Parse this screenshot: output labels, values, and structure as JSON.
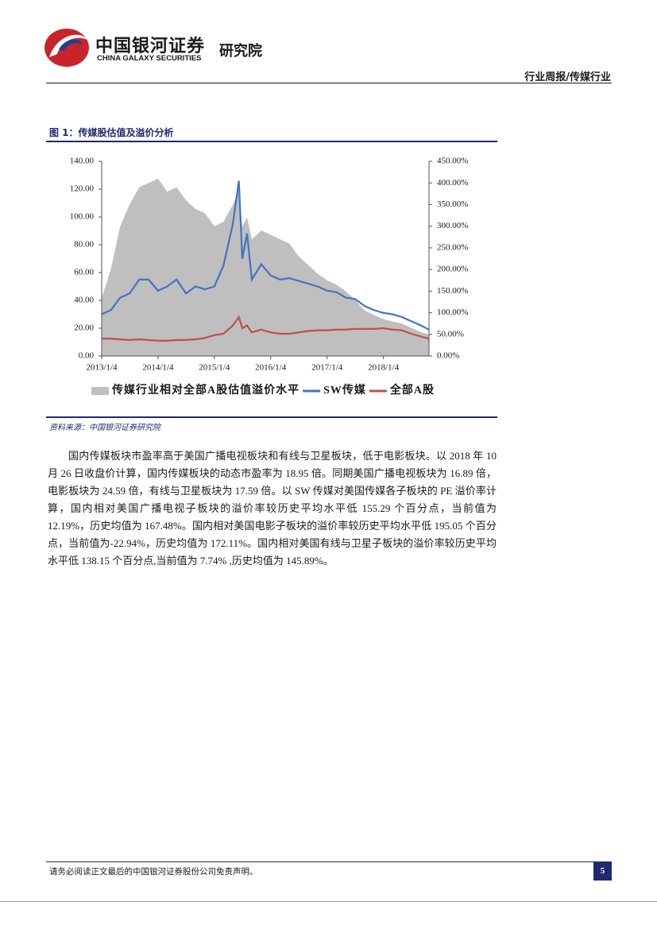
{
  "header": {
    "brand_cn": "中国银河证券",
    "brand_en": "CHINA GALAXY SECURITIES",
    "institute": "研究院",
    "section": "行业周报/传媒行业"
  },
  "figure": {
    "caption": "图 1：传媒股估值及溢价分析",
    "source": "资料来源：中国银河证券研究院"
  },
  "chart_data": {
    "type": "line",
    "x": [
      "2013/1/4",
      "2013/3/4",
      "2013/5/4",
      "2013/7/4",
      "2013/9/4",
      "2013/11/4",
      "2014/1/4",
      "2014/3/4",
      "2014/5/4",
      "2014/7/4",
      "2014/9/4",
      "2014/11/4",
      "2015/1/4",
      "2015/3/4",
      "2015/5/4",
      "2015/6/12",
      "2015/7/4",
      "2015/8/4",
      "2015/9/4",
      "2015/11/4",
      "2016/1/4",
      "2016/3/4",
      "2016/5/4",
      "2016/7/4",
      "2016/9/4",
      "2016/11/4",
      "2017/1/4",
      "2017/3/4",
      "2017/5/4",
      "2017/7/4",
      "2017/9/4",
      "2017/11/4",
      "2018/1/4",
      "2018/3/4",
      "2018/5/4",
      "2018/7/4",
      "2018/9/4",
      "2018/10/26"
    ],
    "xlim": [
      "2013/1/4",
      "2018/10/26"
    ],
    "xticks": [
      "2013/1/4",
      "2014/1/4",
      "2015/1/4",
      "2016/1/4",
      "2017/1/4",
      "2018/1/4"
    ],
    "ylim": [
      0,
      140
    ],
    "yticks": [
      {
        "value": 0,
        "label": "0.00"
      },
      {
        "value": 20,
        "label": "20.00"
      },
      {
        "value": 40,
        "label": "40.00"
      },
      {
        "value": 60,
        "label": "60.00"
      },
      {
        "value": 80,
        "label": "80.00"
      },
      {
        "value": 100,
        "label": "100.00"
      },
      {
        "value": 120,
        "label": "120.00"
      },
      {
        "value": 140,
        "label": "140.00"
      }
    ],
    "y2lim": [
      0,
      450
    ],
    "y2ticks": [
      {
        "value": 0,
        "label": "0.00%"
      },
      {
        "value": 50,
        "label": "50.00%"
      },
      {
        "value": 100,
        "label": "100.00%"
      },
      {
        "value": 150,
        "label": "150.00%"
      },
      {
        "value": 200,
        "label": "200.00%"
      },
      {
        "value": 250,
        "label": "250.00%"
      },
      {
        "value": 300,
        "label": "300.00%"
      },
      {
        "value": 350,
        "label": "350.00%"
      },
      {
        "value": 400,
        "label": "400.00%"
      },
      {
        "value": 450,
        "label": "450.00%"
      }
    ],
    "series": [
      {
        "name": "传媒行业相对全部A股估值溢价水平",
        "type": "area",
        "axis": "y2",
        "color": "#bfbfbf",
        "values": [
          134,
          200,
          300,
          350,
          390,
          400,
          410,
          380,
          390,
          360,
          340,
          330,
          300,
          310,
          350,
          380,
          300,
          320,
          270,
          290,
          280,
          270,
          260,
          230,
          210,
          190,
          175,
          165,
          150,
          130,
          105,
          95,
          85,
          80,
          75,
          65,
          55,
          50
        ]
      },
      {
        "name": "SW传媒",
        "type": "line",
        "color": "#4472c4",
        "values": [
          30,
          33,
          42,
          45,
          55,
          55,
          47,
          50,
          55,
          45,
          50,
          48,
          50,
          65,
          95,
          126,
          70,
          88,
          55,
          66,
          58,
          55,
          56,
          54,
          52,
          50,
          47,
          46,
          42,
          41,
          36,
          33,
          31,
          30,
          28,
          25,
          22,
          18.95
        ]
      },
      {
        "name": "全部A股",
        "type": "line",
        "color": "#c0504d",
        "values": [
          12.5,
          12.5,
          12,
          11.5,
          12,
          11.5,
          11,
          11,
          11.5,
          11.5,
          12,
          13,
          15,
          16,
          22,
          28,
          20,
          22,
          17,
          19,
          17,
          16,
          16,
          17,
          18,
          18.5,
          18.5,
          19,
          19,
          19.5,
          19.5,
          19.5,
          20,
          19,
          18.5,
          16,
          14,
          12.5
        ]
      }
    ]
  },
  "body": {
    "paragraph": "国内传媒板块市盈率高于美国广播电视板块和有线与卫星板块，低于电影板块。以 2018 年 10 月 26 日收盘价计算，国内传媒板块的动态市盈率为 18.95 倍。同期美国广播电视板块为 16.89 倍，电影板块为 24.59 倍，有线与卫星板块为 17.59 倍。以 SW 传媒对美国传媒各子板块的 PE 溢价率计算，国内相对美国广播电视子板块的溢价率较历史平均水平低 155.29 个百分点，当前值为 12.19%，历史均值为 167.48%。国内相对美国电影子板块的溢价率较历史平均水平低 195.05 个百分点，当前值为-22.94%，历史均值为 172.11%。国内相对美国有线与卫星子板块的溢价率较历史平均水平低 138.15 个百分点,当前值为 7.74% ,历史均值为 145.89%。"
  },
  "footer": {
    "note": "请务必阅读正文最后的中国银河证券股份公司免责声明。",
    "page": "5"
  }
}
